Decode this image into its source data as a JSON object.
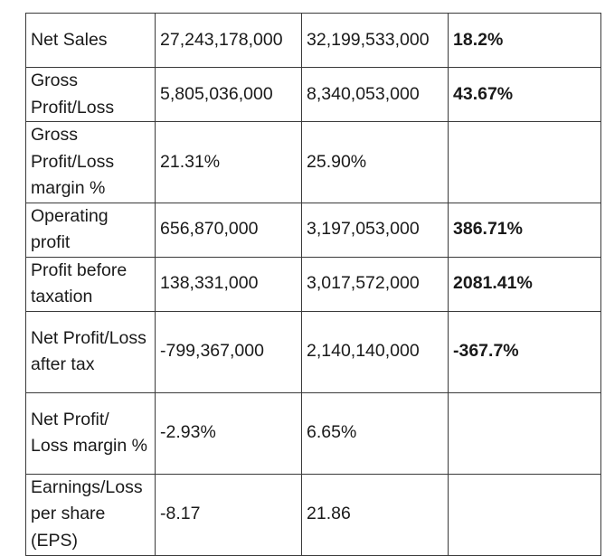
{
  "table": {
    "rows": [
      {
        "label": "Net Sales",
        "prev": "27,243,178,000",
        "curr": "32,199,533,000",
        "change": "18.2%"
      },
      {
        "label": "Gross Profit/Loss",
        "prev": "5,805,036,000",
        "curr": "8,340,053,000",
        "change": "43.67%"
      },
      {
        "label": "Gross Profit/Loss margin %",
        "prev": "21.31%",
        "curr": "25.90%",
        "change": ""
      },
      {
        "label": "Operating profit",
        "prev": "656,870,000",
        "curr": "3,197,053,000",
        "change": "386.71%"
      },
      {
        "label": "Profit before taxation",
        "prev": "138,331,000",
        "curr": "3,017,572,000",
        "change": "2081.41%"
      },
      {
        "label": "Net Profit/Loss after tax",
        "prev": "-799,367,000",
        "curr": "2,140,140,000",
        "change": "-367.7%"
      },
      {
        "label": "Net Profit/ Loss margin %",
        "prev": "-2.93%",
        "curr": "6.65%",
        "change": ""
      },
      {
        "label": "Earnings/Loss per share (EPS)",
        "prev": "-8.17",
        "curr": "21.86",
        "change": ""
      }
    ]
  }
}
